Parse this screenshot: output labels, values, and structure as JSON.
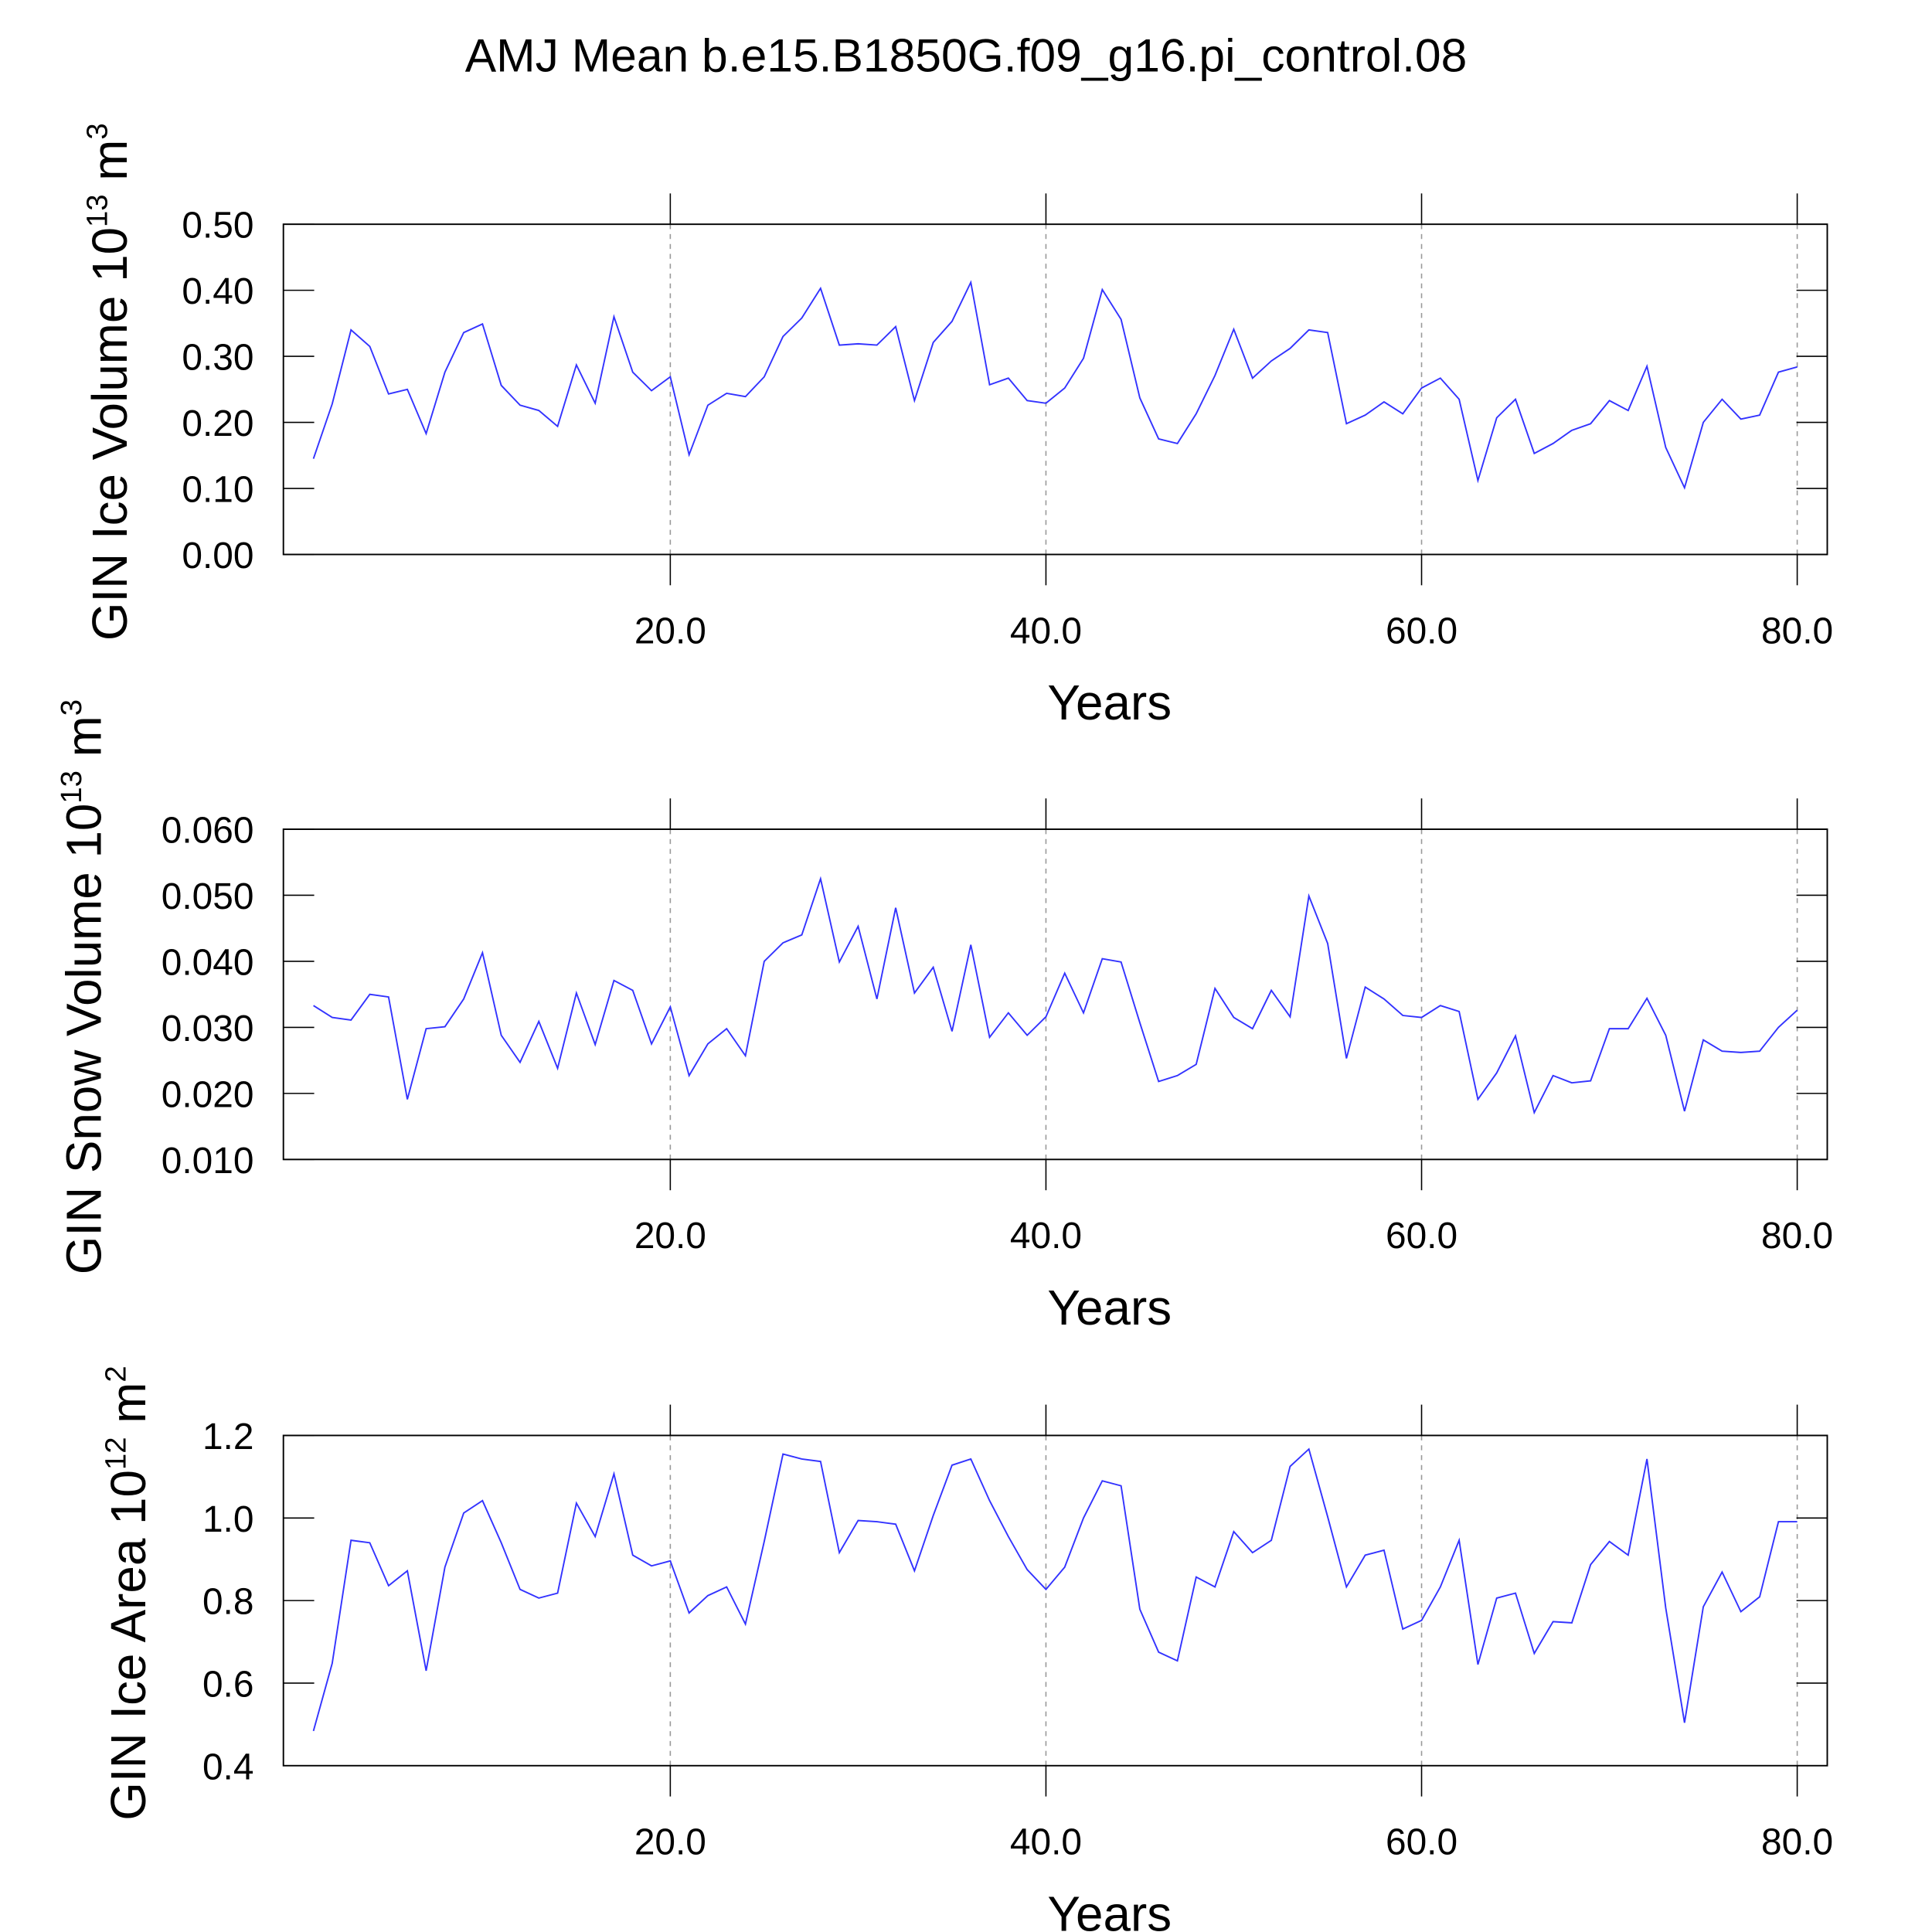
{
  "title": "AMJ Mean b.e15.B1850G.f09_g16.pi_control.08",
  "chart_data": [
    {
      "type": "line",
      "color": "#3333ff",
      "grid": true,
      "ylabel": [
        "GIN Ice Volume 10",
        "13",
        " m",
        "3"
      ],
      "xlabel": "Years",
      "xlim": [
        -0.6,
        81.6
      ],
      "xticks": [
        {
          "value": 20,
          "label": "20.0"
        },
        {
          "value": 40,
          "label": "40.0"
        },
        {
          "value": 60,
          "label": "60.0"
        },
        {
          "value": 80,
          "label": "80.0"
        }
      ],
      "ylim": [
        0,
        0.5
      ],
      "yticks": [
        {
          "value": 0,
          "label": "0.00"
        },
        {
          "value": 0.1,
          "label": "0.10"
        },
        {
          "value": 0.2,
          "label": "0.20"
        },
        {
          "value": 0.3,
          "label": "0.30"
        },
        {
          "value": 0.4,
          "label": "0.40"
        },
        {
          "value": 0.5,
          "label": "0.50"
        }
      ],
      "x": [
        1,
        2,
        3,
        4,
        5,
        6,
        7,
        8,
        9,
        10,
        11,
        12,
        13,
        14,
        15,
        16,
        17,
        18,
        19,
        20,
        21,
        22,
        23,
        24,
        25,
        26,
        27,
        28,
        29,
        30,
        31,
        32,
        33,
        34,
        35,
        36,
        37,
        38,
        39,
        40,
        41,
        42,
        43,
        44,
        45,
        46,
        47,
        48,
        49,
        50,
        51,
        52,
        53,
        54,
        55,
        56,
        57,
        58,
        59,
        60,
        61,
        62,
        63,
        64,
        65,
        66,
        67,
        68,
        69,
        70,
        71,
        72,
        73,
        74,
        75,
        76,
        77,
        78,
        79,
        80
      ],
      "values": [
        0.145,
        0.228,
        0.34,
        0.315,
        0.243,
        0.25,
        0.183,
        0.276,
        0.336,
        0.349,
        0.256,
        0.226,
        0.218,
        0.194,
        0.287,
        0.229,
        0.36,
        0.276,
        0.248,
        0.269,
        0.151,
        0.226,
        0.244,
        0.239,
        0.269,
        0.33,
        0.358,
        0.403,
        0.317,
        0.319,
        0.317,
        0.345,
        0.233,
        0.321,
        0.353,
        0.412,
        0.257,
        0.267,
        0.233,
        0.229,
        0.252,
        0.297,
        0.401,
        0.356,
        0.237,
        0.175,
        0.168,
        0.213,
        0.271,
        0.341,
        0.267,
        0.293,
        0.312,
        0.34,
        0.336,
        0.198,
        0.211,
        0.231,
        0.213,
        0.252,
        0.267,
        0.235,
        0.112,
        0.207,
        0.235,
        0.153,
        0.168,
        0.188,
        0.198,
        0.233,
        0.218,
        0.285,
        0.162,
        0.101,
        0.2,
        0.235,
        0.205,
        0.211,
        0.276,
        0.284
      ]
    },
    {
      "type": "line",
      "color": "#3333ff",
      "grid": true,
      "ylabel": [
        "GIN Snow Volume 10",
        "13",
        " m",
        "3"
      ],
      "xlabel": "Years",
      "xlim": [
        -0.6,
        81.6
      ],
      "xticks": [
        {
          "value": 20,
          "label": "20.0"
        },
        {
          "value": 40,
          "label": "40.0"
        },
        {
          "value": 60,
          "label": "60.0"
        },
        {
          "value": 80,
          "label": "80.0"
        }
      ],
      "ylim": [
        0.01,
        0.06
      ],
      "yticks": [
        {
          "value": 0.01,
          "label": "0.010"
        },
        {
          "value": 0.02,
          "label": "0.020"
        },
        {
          "value": 0.03,
          "label": "0.030"
        },
        {
          "value": 0.04,
          "label": "0.040"
        },
        {
          "value": 0.05,
          "label": "0.050"
        },
        {
          "value": 0.06,
          "label": "0.060"
        }
      ],
      "x": [
        1,
        2,
        3,
        4,
        5,
        6,
        7,
        8,
        9,
        10,
        11,
        12,
        13,
        14,
        15,
        16,
        17,
        18,
        19,
        20,
        21,
        22,
        23,
        24,
        25,
        26,
        27,
        28,
        29,
        30,
        31,
        32,
        33,
        34,
        35,
        36,
        37,
        38,
        39,
        40,
        41,
        42,
        43,
        44,
        45,
        46,
        47,
        48,
        49,
        50,
        51,
        52,
        53,
        54,
        55,
        56,
        57,
        58,
        59,
        60,
        61,
        62,
        63,
        64,
        65,
        66,
        67,
        68,
        69,
        70,
        71,
        72,
        73,
        74,
        75,
        76,
        77,
        78,
        79,
        80
      ],
      "values": [
        0.0333,
        0.0315,
        0.0311,
        0.035,
        0.0346,
        0.0191,
        0.0298,
        0.0301,
        0.0343,
        0.0413,
        0.0288,
        0.0247,
        0.0309,
        0.0238,
        0.0352,
        0.0274,
        0.0371,
        0.0356,
        0.0275,
        0.0331,
        0.0227,
        0.0275,
        0.0298,
        0.0257,
        0.04,
        0.0428,
        0.044,
        0.0525,
        0.0399,
        0.0453,
        0.0343,
        0.0481,
        0.0352,
        0.0391,
        0.0294,
        0.0425,
        0.0285,
        0.0322,
        0.0288,
        0.0316,
        0.0382,
        0.0322,
        0.0404,
        0.0399,
        0.0307,
        0.0218,
        0.0227,
        0.0244,
        0.0359,
        0.0315,
        0.0298,
        0.0356,
        0.0316,
        0.0499,
        0.0427,
        0.0253,
        0.0361,
        0.0343,
        0.0318,
        0.0315,
        0.0333,
        0.0324,
        0.0191,
        0.0231,
        0.0287,
        0.0171,
        0.0227,
        0.0216,
        0.0219,
        0.0298,
        0.0298,
        0.0344,
        0.0288,
        0.0173,
        0.0281,
        0.0264,
        0.0262,
        0.0264,
        0.03,
        0.0326
      ]
    },
    {
      "type": "line",
      "color": "#3333ff",
      "grid": true,
      "ylabel": [
        "GIN Ice Area 10",
        "12",
        " m",
        "2"
      ],
      "xlabel": "Years",
      "xlim": [
        -0.6,
        81.6
      ],
      "xticks": [
        {
          "value": 20,
          "label": "20.0"
        },
        {
          "value": 40,
          "label": "40.0"
        },
        {
          "value": 60,
          "label": "60.0"
        },
        {
          "value": 80,
          "label": "80.0"
        }
      ],
      "ylim": [
        0.4,
        1.2
      ],
      "yticks": [
        0.4,
        0.6,
        0.8,
        {
          "value": 1,
          "label": "1.0"
        },
        1.2
      ],
      "x": [
        1,
        2,
        3,
        4,
        5,
        6,
        7,
        8,
        9,
        10,
        11,
        12,
        13,
        14,
        15,
        16,
        17,
        18,
        19,
        20,
        21,
        22,
        23,
        24,
        25,
        26,
        27,
        28,
        29,
        30,
        31,
        32,
        33,
        34,
        35,
        36,
        37,
        38,
        39,
        40,
        41,
        42,
        43,
        44,
        45,
        46,
        47,
        48,
        49,
        50,
        51,
        52,
        53,
        54,
        55,
        56,
        57,
        58,
        59,
        60,
        61,
        62,
        63,
        64,
        65,
        66,
        67,
        68,
        69,
        70,
        71,
        72,
        73,
        74,
        75,
        76,
        77,
        78,
        79,
        80
      ],
      "values": [
        0.484,
        0.648,
        0.946,
        0.94,
        0.836,
        0.872,
        0.63,
        0.881,
        1.012,
        1.042,
        0.94,
        0.827,
        0.806,
        0.818,
        1.036,
        0.955,
        1.107,
        0.91,
        0.884,
        0.896,
        0.77,
        0.812,
        0.833,
        0.743,
        0.943,
        1.155,
        1.143,
        1.137,
        0.916,
        0.994,
        0.991,
        0.985,
        0.872,
        1.006,
        1.128,
        1.143,
        1.042,
        0.955,
        0.875,
        0.827,
        0.881,
        1.0,
        1.09,
        1.078,
        0.779,
        0.675,
        0.654,
        0.857,
        0.833,
        0.967,
        0.916,
        0.946,
        1.125,
        1.167,
        1.003,
        0.833,
        0.91,
        0.922,
        0.731,
        0.752,
        0.833,
        0.946,
        0.645,
        0.806,
        0.818,
        0.672,
        0.749,
        0.746,
        0.887,
        0.943,
        0.91,
        1.143,
        0.782,
        0.504,
        0.785,
        0.869,
        0.773,
        0.809,
        0.991,
        0.991
      ]
    }
  ]
}
